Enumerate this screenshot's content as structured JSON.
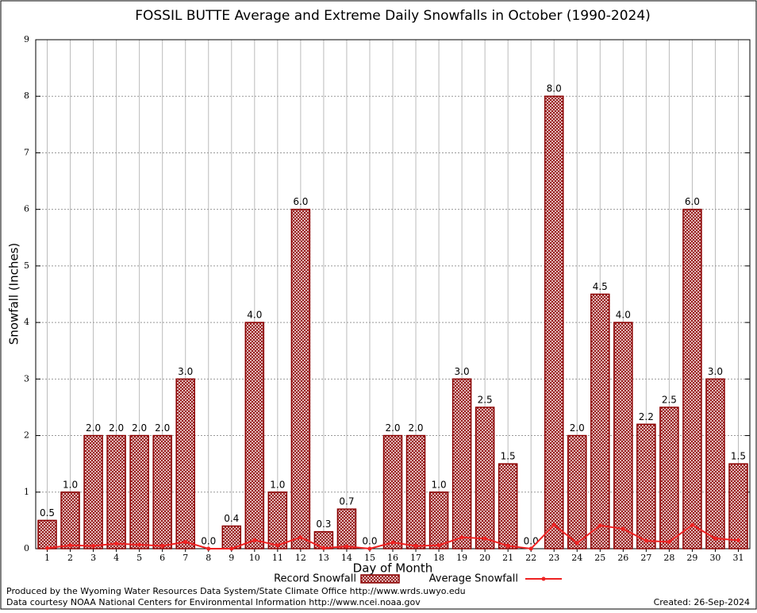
{
  "chart_data": {
    "type": "bar",
    "title": "FOSSIL BUTTE Average and Extreme Daily Snowfalls in October (1990-2024)",
    "x_label": "Day of Month",
    "y_label": "Snowfall (Inches)",
    "categories": [
      "1",
      "2",
      "3",
      "4",
      "5",
      "6",
      "7",
      "8",
      "9",
      "10",
      "11",
      "12",
      "13",
      "14",
      "15",
      "16",
      "17",
      "18",
      "19",
      "20",
      "21",
      "22",
      "23",
      "24",
      "25",
      "26",
      "27",
      "28",
      "29",
      "30",
      "31"
    ],
    "series": [
      {
        "name": "Record Snowfall",
        "type": "bar",
        "color": "#8b0000",
        "values": [
          0.5,
          1.0,
          2.0,
          2.0,
          2.0,
          2.0,
          3.0,
          0.0,
          0.4,
          4.0,
          1.0,
          6.0,
          0.3,
          0.7,
          0.0,
          2.0,
          2.0,
          1.0,
          3.0,
          2.5,
          1.5,
          0.0,
          8.0,
          2.0,
          4.5,
          4.0,
          2.2,
          2.5,
          6.0,
          3.0,
          1.5
        ],
        "value_labels": [
          "0.5",
          "1.0",
          "2.0",
          "2.0",
          "2.0",
          "2.0",
          "3.0",
          "0.0",
          "0.4",
          "4.0",
          "1.0",
          "6.0",
          "0.3",
          "0.7",
          "0.0",
          "2.0",
          "2.0",
          "1.0",
          "3.0",
          "2.5",
          "1.5",
          "0.0",
          "8.0",
          "2.0",
          "4.5",
          "4.0",
          "2.2",
          "2.5",
          "6.0",
          "3.0",
          "1.5"
        ]
      },
      {
        "name": "Average Snowfall",
        "type": "line",
        "color": "#ee2222",
        "values": [
          0.01,
          0.06,
          0.05,
          0.09,
          0.07,
          0.05,
          0.12,
          0.0,
          0.0,
          0.15,
          0.06,
          0.2,
          0.01,
          0.04,
          0.0,
          0.11,
          0.05,
          0.06,
          0.2,
          0.18,
          0.05,
          0.0,
          0.42,
          0.1,
          0.41,
          0.35,
          0.14,
          0.12,
          0.42,
          0.18,
          0.15
        ]
      }
    ],
    "ylim": [
      0,
      9
    ],
    "yticks": [
      0,
      1,
      2,
      3,
      4,
      5,
      6,
      7,
      8,
      9
    ],
    "grid": true,
    "legend": "bottom",
    "footer": {
      "left1": "Produced by the Wyoming Water Resources Data System/State Climate Office http://www.wrds.uwyo.edu",
      "left2": "Data courtesy NOAA National Centers for Environmental Information http://www.ncei.noaa.gov",
      "right": "Created:  26-Sep-2024"
    }
  }
}
